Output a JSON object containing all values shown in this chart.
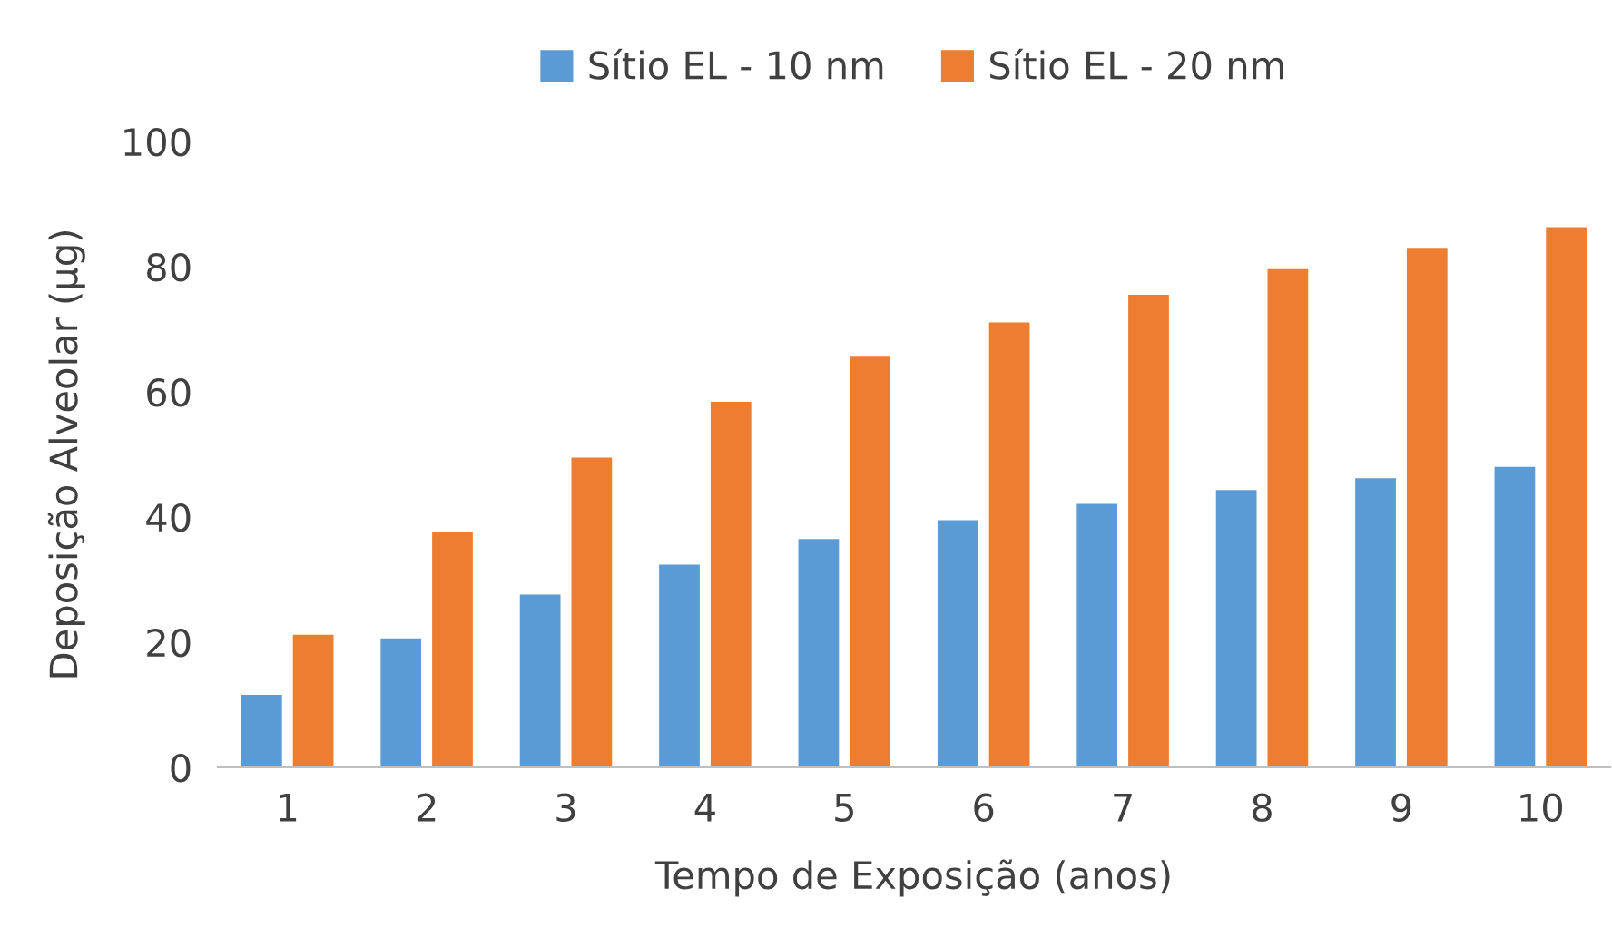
{
  "chart_data": {
    "type": "bar",
    "xlabel": "Tempo de Exposição (anos)",
    "ylabel": "Deposição Alveolar (µg)",
    "categories": [
      "1",
      "2",
      "3",
      "4",
      "5",
      "6",
      "7",
      "8",
      "9",
      "10"
    ],
    "series": [
      {
        "name": "Sítio EL - 10 nm",
        "color": "#5b9bd5",
        "values": [
          11.8,
          20.8,
          27.8,
          32.6,
          36.7,
          39.7,
          42.3,
          44.5,
          46.4,
          48.2
        ]
      },
      {
        "name": "Sítio EL - 20 nm",
        "color": "#ed7d31",
        "values": [
          21.4,
          37.9,
          49.7,
          58.6,
          65.8,
          71.3,
          75.7,
          79.8,
          83.2,
          86.5
        ]
      }
    ],
    "ylim": [
      0,
      100
    ],
    "yticks": [
      0,
      20,
      40,
      60,
      80,
      100
    ],
    "grid": false,
    "legend": "top"
  }
}
